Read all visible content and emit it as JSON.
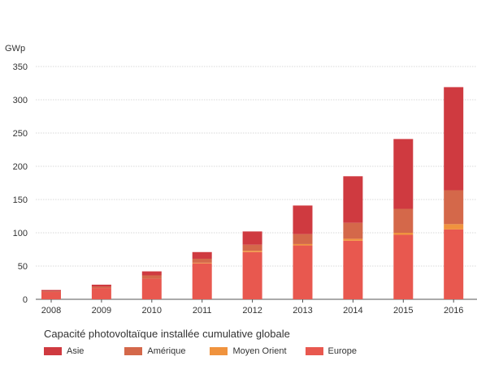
{
  "chart_data": {
    "type": "bar",
    "stacked": true,
    "title": "Capacité photovoltaïque installée cumulative globale",
    "ylabel": "GWp",
    "xlabel": "",
    "ylim": [
      0,
      350
    ],
    "yticks": [
      "0",
      "50",
      "100",
      "150",
      "200",
      "250",
      "300",
      "350"
    ],
    "grid": true,
    "legend_position": "bottom",
    "categories": [
      "2008",
      "2009",
      "2010",
      "2011",
      "2012",
      "2013",
      "2014",
      "2015",
      "2016"
    ],
    "series": [
      {
        "name": "Europe",
        "color": "#e8584f",
        "values": [
          11,
          17,
          31,
          54,
          71,
          81,
          88,
          97,
          105
        ]
      },
      {
        "name": "Moyen Orient",
        "color": "#f0933e",
        "values": [
          0,
          0,
          0,
          1,
          2,
          2,
          3,
          3,
          8
        ]
      },
      {
        "name": "Amérique",
        "color": "#d4684a",
        "values": [
          1,
          2,
          5,
          6,
          9,
          15,
          24,
          36,
          51
        ]
      },
      {
        "name": "Asie",
        "color": "#cf3a40",
        "values": [
          2,
          3,
          6,
          10,
          20,
          43,
          70,
          105,
          155
        ]
      }
    ]
  },
  "legend_order": [
    "Asie",
    "Amérique",
    "Moyen Orient",
    "Europe"
  ]
}
